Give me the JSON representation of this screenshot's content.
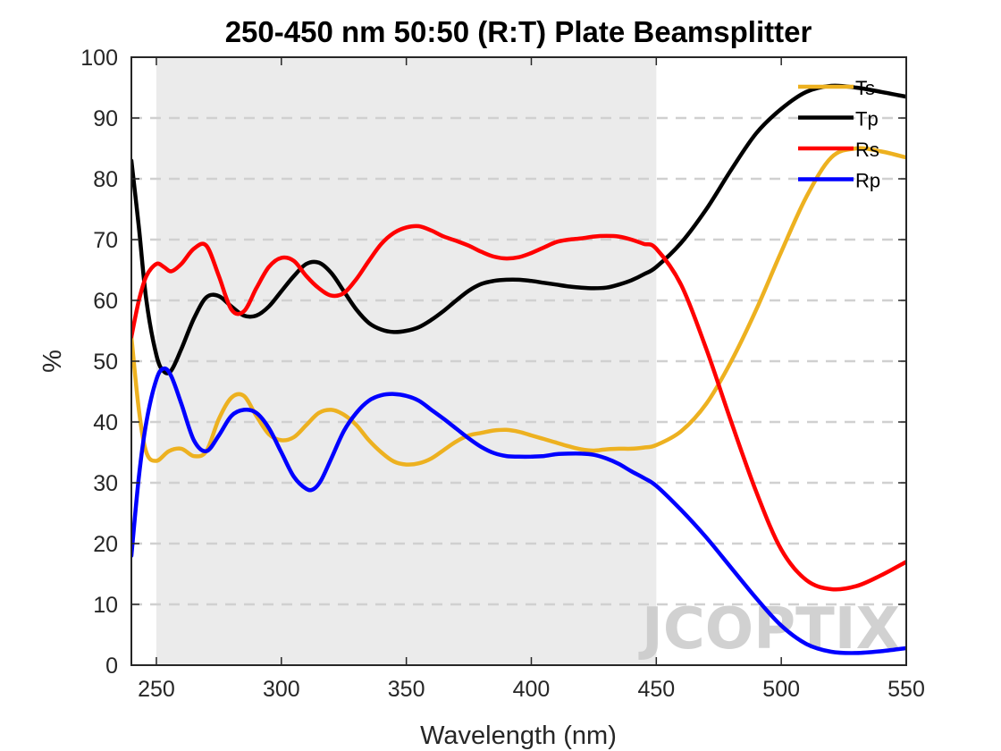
{
  "chart_data": {
    "type": "line",
    "title": "250-450 nm 50:50 (R:T) Plate Beamsplitter",
    "xlabel": "Wavelength (nm)",
    "ylabel": "%",
    "xlim": [
      240,
      550
    ],
    "ylim": [
      0,
      100
    ],
    "xticks": [
      250,
      300,
      350,
      400,
      450,
      500,
      550
    ],
    "yticks": [
      0,
      10,
      20,
      30,
      40,
      50,
      60,
      70,
      80,
      90,
      100
    ],
    "grid": "horizontal dashed",
    "shaded_band": {
      "from": 250,
      "to": 450
    },
    "legend_position": "top-right",
    "watermark": "JCOPTIX",
    "series": [
      {
        "name": "Ts",
        "color": "#EDB120",
        "x": [
          240,
          243,
          246,
          250,
          255,
          260,
          265,
          270,
          275,
          280,
          285,
          290,
          295,
          300,
          305,
          310,
          315,
          320,
          325,
          330,
          335,
          340,
          345,
          350,
          355,
          360,
          365,
          370,
          375,
          380,
          385,
          390,
          395,
          400,
          405,
          410,
          415,
          420,
          425,
          430,
          435,
          440,
          445,
          450,
          460,
          470,
          480,
          490,
          500,
          510,
          520,
          530,
          540,
          550
        ],
        "y": [
          54,
          42,
          35,
          33.6,
          35.2,
          35.6,
          34.4,
          35.2,
          40.5,
          44,
          44.3,
          41,
          38,
          37,
          37.5,
          39.5,
          41.5,
          42,
          41.2,
          39.5,
          37,
          35,
          33.5,
          33,
          33.2,
          34,
          35.4,
          36.8,
          37.8,
          38.2,
          38.6,
          38.7,
          38.4,
          37.8,
          37.2,
          36.6,
          36,
          35.5,
          35.3,
          35.5,
          35.6,
          35.6,
          35.8,
          36.2,
          38.5,
          43,
          50,
          58.5,
          68,
          77,
          83.5,
          85,
          84.5,
          83.5
        ]
      },
      {
        "name": "Tp",
        "color": "#000000",
        "x": [
          240,
          243,
          246,
          250,
          253,
          256,
          260,
          265,
          270,
          275,
          280,
          285,
          290,
          295,
          300,
          305,
          310,
          315,
          320,
          325,
          330,
          335,
          340,
          345,
          350,
          355,
          360,
          365,
          370,
          375,
          380,
          385,
          390,
          395,
          400,
          405,
          410,
          415,
          420,
          425,
          430,
          435,
          440,
          445,
          450,
          460,
          470,
          480,
          490,
          500,
          510,
          520,
          530,
          540,
          550
        ],
        "y": [
          83,
          72,
          60,
          51,
          48.3,
          48.5,
          52,
          57,
          60.5,
          60.7,
          59,
          57.5,
          57.5,
          59,
          61.5,
          64,
          66,
          66.2,
          64.5,
          61.5,
          58.5,
          56.3,
          55.2,
          54.8,
          55,
          55.6,
          56.8,
          58.3,
          60,
          61.6,
          62.7,
          63.2,
          63.4,
          63.4,
          63.2,
          62.9,
          62.6,
          62.3,
          62.1,
          62,
          62.1,
          62.6,
          63.3,
          64.3,
          65.5,
          69.5,
          75,
          81.5,
          87.5,
          91.5,
          94.3,
          95.3,
          95,
          94.3,
          93.5
        ]
      },
      {
        "name": "Rs",
        "color": "#FF0000",
        "x": [
          240,
          243,
          246,
          250,
          253,
          256,
          260,
          265,
          270,
          275,
          280,
          285,
          290,
          295,
          300,
          305,
          310,
          315,
          320,
          325,
          330,
          335,
          340,
          345,
          350,
          355,
          360,
          365,
          370,
          375,
          380,
          385,
          390,
          395,
          400,
          405,
          410,
          415,
          420,
          425,
          430,
          435,
          440,
          445,
          450,
          460,
          470,
          480,
          490,
          500,
          510,
          520,
          530,
          540,
          550
        ],
        "y": [
          54,
          60,
          64,
          66,
          65.5,
          64.8,
          66,
          68.5,
          69,
          64,
          58.5,
          58.2,
          62,
          65.5,
          67,
          66.5,
          64,
          62,
          60.8,
          61.2,
          63.5,
          66.5,
          69.3,
          71.1,
          72,
          72.2,
          71.5,
          70.5,
          69.8,
          69,
          68,
          67.2,
          66.9,
          67.1,
          67.8,
          68.7,
          69.6,
          70,
          70.2,
          70.5,
          70.6,
          70.5,
          70,
          69.3,
          68.5,
          62.5,
          52,
          40,
          28.5,
          19,
          14,
          12.5,
          13,
          14.8,
          17
        ]
      },
      {
        "name": "Rp",
        "color": "#0000FF",
        "x": [
          240,
          243,
          246,
          250,
          253,
          256,
          260,
          265,
          270,
          275,
          280,
          285,
          290,
          295,
          300,
          305,
          310,
          313,
          316,
          320,
          325,
          330,
          335,
          340,
          345,
          350,
          355,
          360,
          365,
          370,
          375,
          380,
          385,
          390,
          395,
          400,
          405,
          410,
          415,
          420,
          425,
          430,
          435,
          440,
          445,
          450,
          460,
          470,
          480,
          490,
          500,
          510,
          520,
          530,
          540,
          550
        ],
        "y": [
          18,
          31,
          40,
          47,
          48.8,
          47.5,
          43,
          37,
          35.2,
          37.8,
          41,
          42,
          41.5,
          39,
          35,
          31,
          29,
          29,
          30.5,
          34,
          38.5,
          41.5,
          43.5,
          44.4,
          44.6,
          44.3,
          43.5,
          42,
          40.5,
          38.9,
          37.3,
          35.9,
          34.9,
          34.4,
          34.3,
          34.3,
          34.4,
          34.7,
          34.8,
          34.8,
          34.6,
          34,
          33.1,
          31.9,
          30.8,
          29.5,
          25.5,
          21,
          16,
          11,
          6.5,
          3.5,
          2.2,
          2,
          2.3,
          2.8
        ]
      }
    ]
  }
}
